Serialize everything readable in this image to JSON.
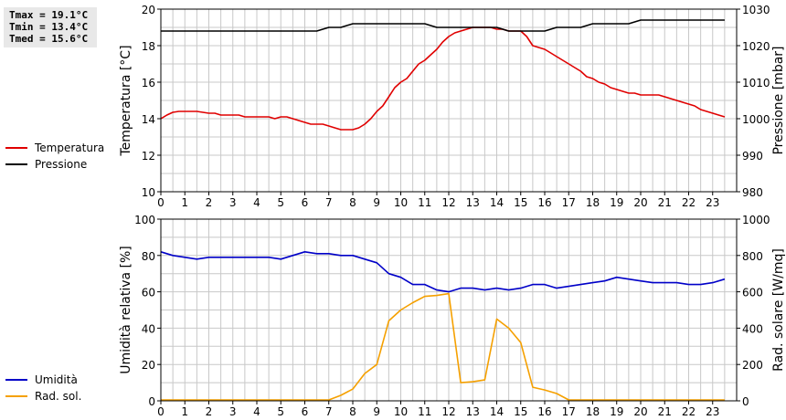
{
  "stats": {
    "tmax": "Tmax = 19.1°C",
    "tmin": "Tmin = 13.4°C",
    "tmed": "Tmed = 15.6°C"
  },
  "colors": {
    "temperature": "#e00000",
    "pressure": "#000000",
    "humidity": "#0000c8",
    "solar": "#f5a000",
    "grid": "#c8c8c8",
    "stats_bg": "#e8e8e8"
  },
  "chart_data": [
    {
      "type": "line",
      "x_ticks": [
        "0",
        "1",
        "2",
        "3",
        "4",
        "5",
        "6",
        "7",
        "8",
        "9",
        "10",
        "11",
        "12",
        "13",
        "14",
        "15",
        "16",
        "17",
        "18",
        "19",
        "20",
        "21",
        "22",
        "23"
      ],
      "xlim": [
        0,
        24
      ],
      "grid": true,
      "left_axis": {
        "label": "Temperatura [°C]",
        "ylim": [
          10,
          20
        ],
        "ticks": [
          "10",
          "12",
          "14",
          "16",
          "18",
          "20"
        ]
      },
      "right_axis": {
        "label": "Pressione [mbar]",
        "ylim": [
          980,
          1030
        ],
        "ticks": [
          "980",
          "990",
          "1000",
          "1010",
          "1020",
          "1030"
        ]
      },
      "legend": [
        "Temperatura",
        "Pressione"
      ],
      "series": [
        {
          "name": "Temperatura",
          "axis": "left",
          "color": "#e00000",
          "x": [
            0,
            0.25,
            0.5,
            0.75,
            1,
            1.25,
            1.5,
            1.75,
            2,
            2.25,
            2.5,
            2.75,
            3,
            3.25,
            3.5,
            3.75,
            4,
            4.25,
            4.5,
            4.75,
            5,
            5.25,
            5.5,
            5.75,
            6,
            6.25,
            6.5,
            6.75,
            7,
            7.25,
            7.5,
            7.75,
            8,
            8.25,
            8.5,
            8.75,
            9,
            9.25,
            9.5,
            9.75,
            10,
            10.25,
            10.5,
            10.75,
            11,
            11.25,
            11.5,
            11.75,
            12,
            12.25,
            12.5,
            12.75,
            13,
            13.25,
            13.5,
            13.75,
            14,
            14.25,
            14.5,
            14.75,
            15,
            15.25,
            15.5,
            15.75,
            16,
            16.25,
            16.5,
            16.75,
            17,
            17.25,
            17.5,
            17.75,
            18,
            18.25,
            18.5,
            18.75,
            19,
            19.25,
            19.5,
            19.75,
            20,
            20.25,
            20.5,
            20.75,
            21,
            21.25,
            21.5,
            21.75,
            22,
            22.25,
            22.5,
            22.75,
            23,
            23.25,
            23.5
          ],
          "y": [
            14.0,
            14.2,
            14.35,
            14.4,
            14.4,
            14.4,
            14.4,
            14.35,
            14.3,
            14.3,
            14.2,
            14.2,
            14.2,
            14.2,
            14.1,
            14.1,
            14.1,
            14.1,
            14.1,
            14.0,
            14.1,
            14.1,
            14.0,
            13.9,
            13.8,
            13.7,
            13.7,
            13.7,
            13.6,
            13.5,
            13.4,
            13.4,
            13.4,
            13.5,
            13.7,
            14.0,
            14.4,
            14.7,
            15.2,
            15.7,
            16.0,
            16.2,
            16.6,
            17.0,
            17.2,
            17.5,
            17.8,
            18.2,
            18.5,
            18.7,
            18.8,
            18.9,
            19.0,
            19.0,
            19.0,
            19.0,
            18.9,
            18.9,
            18.8,
            18.8,
            18.8,
            18.5,
            18.0,
            17.9,
            17.8,
            17.6,
            17.4,
            17.2,
            17.0,
            16.8,
            16.6,
            16.3,
            16.2,
            16.0,
            15.9,
            15.7,
            15.6,
            15.5,
            15.4,
            15.4,
            15.3,
            15.3,
            15.3,
            15.3,
            15.2,
            15.1,
            15.0,
            14.9,
            14.8,
            14.7,
            14.5,
            14.4,
            14.3,
            14.2,
            14.1
          ]
        },
        {
          "name": "Pressione",
          "axis": "right",
          "color": "#000000",
          "x": [
            0,
            6.5,
            7,
            7.5,
            8,
            8.5,
            9,
            9.5,
            10,
            10.5,
            11,
            11.5,
            12,
            12.5,
            13,
            13.5,
            14,
            14.5,
            15,
            15.5,
            16,
            16.5,
            17,
            17.5,
            18,
            18.5,
            19,
            19.5,
            20,
            20.5,
            21,
            21.5,
            22,
            22.5,
            23,
            23.5
          ],
          "y": [
            1024,
            1024,
            1025,
            1025,
            1026,
            1026,
            1026,
            1026,
            1026,
            1026,
            1026,
            1025,
            1025,
            1025,
            1025,
            1025,
            1025,
            1024,
            1024,
            1024,
            1024,
            1025,
            1025,
            1025,
            1026,
            1026,
            1026,
            1026,
            1027,
            1027,
            1027,
            1027,
            1027,
            1027,
            1027,
            1027
          ]
        }
      ]
    },
    {
      "type": "line",
      "x_ticks": [
        "0",
        "1",
        "2",
        "3",
        "4",
        "5",
        "6",
        "7",
        "8",
        "9",
        "10",
        "11",
        "12",
        "13",
        "14",
        "15",
        "16",
        "17",
        "18",
        "19",
        "20",
        "21",
        "22",
        "23"
      ],
      "xlim": [
        0,
        24
      ],
      "grid": true,
      "left_axis": {
        "label": "Umidità relativa [%]",
        "ylim": [
          0,
          100
        ],
        "ticks": [
          "0",
          "20",
          "40",
          "60",
          "80",
          "100"
        ]
      },
      "right_axis": {
        "label": "Rad. solare [W/mq]",
        "ylim": [
          0,
          1000
        ],
        "ticks": [
          "0",
          "200",
          "400",
          "600",
          "800",
          "1000"
        ]
      },
      "legend": [
        "Umidità",
        "Rad. sol."
      ],
      "series": [
        {
          "name": "Umidità",
          "axis": "left",
          "color": "#0000c8",
          "x": [
            0,
            0.5,
            1,
            1.5,
            2,
            2.5,
            3,
            3.5,
            4,
            4.5,
            5,
            5.5,
            6,
            6.5,
            7,
            7.5,
            8,
            8.5,
            9,
            9.5,
            10,
            10.5,
            11,
            11.5,
            12,
            12.5,
            13,
            13.5,
            14,
            14.5,
            15,
            15.5,
            16,
            16.5,
            17,
            17.5,
            18,
            18.5,
            19,
            19.5,
            20,
            20.5,
            21,
            21.5,
            22,
            22.5,
            23,
            23.5
          ],
          "y": [
            82,
            80,
            79,
            78,
            79,
            79,
            79,
            79,
            79,
            79,
            78,
            80,
            82,
            81,
            81,
            80,
            80,
            78,
            76,
            70,
            68,
            64,
            64,
            61,
            60,
            62,
            62,
            61,
            62,
            61,
            62,
            64,
            64,
            62,
            63,
            64,
            65,
            66,
            68,
            67,
            66,
            65,
            65,
            65,
            64,
            64,
            65,
            67
          ]
        },
        {
          "name": "Rad. sol.",
          "axis": "right",
          "color": "#f5a000",
          "x": [
            0,
            7,
            7.5,
            8,
            8.5,
            9,
            9.5,
            10,
            10.5,
            11,
            11.5,
            12,
            12.5,
            13,
            13.5,
            14,
            14.5,
            15,
            15.5,
            16,
            16.5,
            17,
            18,
            19,
            20,
            21,
            22,
            23,
            23.5
          ],
          "y": [
            5,
            5,
            30,
            65,
            150,
            200,
            440,
            500,
            540,
            575,
            580,
            590,
            100,
            105,
            115,
            450,
            400,
            320,
            75,
            60,
            40,
            5,
            5,
            5,
            5,
            5,
            5,
            5,
            5
          ]
        }
      ]
    }
  ]
}
